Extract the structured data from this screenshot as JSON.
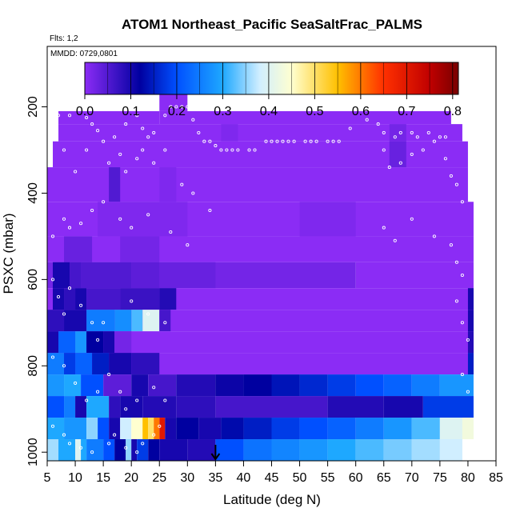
{
  "chart_data": {
    "type": "heatmap",
    "title": "ATOM1 Northeast_Pacific SeaSaltFrac_PALMS",
    "flights_label": "Flts: 1,2",
    "date_label": "MMDD: 0729,0801",
    "xlabel": "Latitude (deg N)",
    "ylabel": "PSXC (mbar)",
    "xlim": [
      5,
      85
    ],
    "ylim": [
      1020,
      60
    ],
    "y_reversed": true,
    "xticks": [
      5,
      10,
      15,
      20,
      25,
      30,
      35,
      40,
      45,
      50,
      55,
      60,
      65,
      70,
      75,
      80,
      85
    ],
    "yticks": [
      200,
      400,
      600,
      800,
      1000
    ],
    "colorbar": {
      "min": 0.0,
      "max": 0.8125,
      "ticks": [
        0.0,
        0.1,
        0.2,
        0.3,
        0.4,
        0.5,
        0.6,
        0.7,
        0.8
      ],
      "tick_labels": [
        "0.0",
        "0.1",
        "0.2",
        "0.3",
        "0.4",
        "0.5",
        "0.6",
        "0.7",
        "0.8"
      ],
      "colors": [
        "#8b2cf5",
        "#0000a0",
        "#0050ff",
        "#1ea8ff",
        "#d0eeff",
        "#ffffd0",
        "#ffc000",
        "#ff3000",
        "#c00000",
        "#780000"
      ],
      "stops": [
        0.0,
        0.12,
        0.2,
        0.3,
        0.38,
        0.45,
        0.55,
        0.65,
        0.75,
        0.8125
      ]
    },
    "marker_latitude": 35,
    "grid": [
      {
        "p": [
          170,
          210
        ],
        "segs": [
          [
            25,
            30,
            0.0
          ]
        ]
      },
      {
        "p": [
          210,
          240
        ],
        "segs": [
          [
            7,
            25,
            0.0
          ],
          [
            25,
            77,
            0.0
          ]
        ]
      },
      {
        "p": [
          240,
          280
        ],
        "segs": [
          [
            7,
            79,
            0.0
          ],
          [
            36,
            39,
            0.01
          ],
          [
            66,
            69,
            0.02
          ]
        ]
      },
      {
        "p": [
          280,
          340
        ],
        "segs": [
          [
            6,
            80,
            0.0
          ],
          [
            66,
            69,
            0.03
          ]
        ]
      },
      {
        "p": [
          340,
          420
        ],
        "segs": [
          [
            5,
            80,
            0.0
          ],
          [
            16,
            18,
            0.05
          ],
          [
            25,
            28,
            0.01
          ]
        ]
      },
      {
        "p": [
          420,
          500
        ],
        "segs": [
          [
            5,
            81,
            0.0
          ],
          [
            14,
            30,
            0.01
          ],
          [
            50,
            60,
            0.01
          ]
        ]
      },
      {
        "p": [
          500,
          560
        ],
        "segs": [
          [
            5,
            81,
            0.0
          ],
          [
            8,
            13,
            0.03
          ],
          [
            18,
            25,
            0.02
          ]
        ]
      },
      {
        "p": [
          560,
          620
        ],
        "segs": [
          [
            5,
            60,
            0.02
          ],
          [
            6,
            9,
            0.1
          ],
          [
            9,
            11,
            0.06
          ],
          [
            11,
            20,
            0.05
          ],
          [
            20,
            25,
            0.04
          ],
          [
            25,
            35,
            0.03
          ],
          [
            60,
            81,
            0.0
          ]
        ]
      },
      {
        "p": [
          620,
          670
        ],
        "segs": [
          [
            5,
            81,
            0.0
          ],
          [
            6,
            8,
            0.1
          ],
          [
            8,
            10,
            0.08
          ],
          [
            10,
            12,
            0.1
          ],
          [
            12,
            18,
            0.06
          ],
          [
            18,
            25,
            0.07
          ],
          [
            25,
            28,
            0.09
          ],
          [
            80,
            81,
            0.1
          ]
        ]
      },
      {
        "p": [
          670,
          720
        ],
        "segs": [
          [
            5,
            81,
            0.0
          ],
          [
            5,
            8,
            0.08
          ],
          [
            8,
            12,
            0.1
          ],
          [
            12,
            17,
            0.25
          ],
          [
            17,
            20,
            0.27
          ],
          [
            20,
            22,
            0.32
          ],
          [
            22,
            25,
            0.4
          ],
          [
            25,
            27,
            0.06
          ],
          [
            80,
            81,
            0.1
          ]
        ]
      },
      {
        "p": [
          720,
          770
        ],
        "segs": [
          [
            5,
            81,
            0.0
          ],
          [
            5,
            7,
            0.1
          ],
          [
            7,
            10,
            0.22
          ],
          [
            10,
            12,
            0.28
          ],
          [
            12,
            15,
            0.12
          ],
          [
            15,
            17,
            0.1
          ],
          [
            17,
            20,
            0.02
          ],
          [
            80,
            81,
            0.09
          ]
        ]
      },
      {
        "p": [
          770,
          820
        ],
        "segs": [
          [
            5,
            81,
            0.0
          ],
          [
            5,
            8,
            0.25
          ],
          [
            8,
            10,
            0.18
          ],
          [
            10,
            13,
            0.22
          ],
          [
            13,
            16,
            0.15
          ],
          [
            16,
            20,
            0.1
          ],
          [
            20,
            25,
            0.08
          ],
          [
            80,
            81,
            0.15
          ]
        ]
      },
      {
        "p": [
          820,
          870
        ],
        "segs": [
          [
            5,
            8,
            0.28
          ],
          [
            8,
            11,
            0.3
          ],
          [
            11,
            15,
            0.2
          ],
          [
            15,
            20,
            0.04
          ],
          [
            20,
            23,
            0.1
          ],
          [
            23,
            28,
            0.06
          ],
          [
            28,
            35,
            0.09
          ],
          [
            35,
            40,
            0.11
          ],
          [
            40,
            45,
            0.12
          ],
          [
            45,
            50,
            0.14
          ],
          [
            50,
            55,
            0.16
          ],
          [
            55,
            60,
            0.18
          ],
          [
            60,
            65,
            0.2
          ],
          [
            65,
            70,
            0.22
          ],
          [
            70,
            75,
            0.25
          ],
          [
            75,
            81,
            0.28
          ]
        ]
      },
      {
        "p": [
          870,
          920
        ],
        "segs": [
          [
            5,
            8,
            0.2
          ],
          [
            8,
            10,
            0.25
          ],
          [
            10,
            12,
            0.1
          ],
          [
            12,
            16,
            0.3
          ],
          [
            16,
            18,
            0.08
          ],
          [
            18,
            22,
            0.1
          ],
          [
            22,
            28,
            0.09
          ],
          [
            28,
            35,
            0.08
          ],
          [
            35,
            45,
            0.06
          ],
          [
            45,
            55,
            0.06
          ],
          [
            55,
            65,
            0.09
          ],
          [
            65,
            72,
            0.1
          ],
          [
            72,
            81,
            0.18
          ]
        ]
      },
      {
        "p": [
          920,
          970
        ],
        "segs": [
          [
            5,
            8,
            0.3
          ],
          [
            8,
            12,
            0.28
          ],
          [
            12,
            14,
            0.35
          ],
          [
            14,
            16,
            0.2
          ],
          [
            16,
            18,
            0.1
          ],
          [
            18,
            20,
            0.38
          ],
          [
            20,
            22,
            0.45
          ],
          [
            22,
            23,
            0.55
          ],
          [
            23,
            24,
            0.5
          ],
          [
            24,
            25,
            0.6
          ],
          [
            25,
            26,
            0.7
          ],
          [
            26,
            28,
            0.1
          ],
          [
            28,
            32,
            0.12
          ],
          [
            32,
            36,
            0.1
          ],
          [
            36,
            40,
            0.13
          ],
          [
            40,
            45,
            0.15
          ],
          [
            45,
            50,
            0.18
          ],
          [
            50,
            55,
            0.2
          ],
          [
            55,
            60,
            0.22
          ],
          [
            60,
            65,
            0.25
          ],
          [
            65,
            70,
            0.28
          ],
          [
            70,
            75,
            0.32
          ],
          [
            75,
            79,
            0.4
          ],
          [
            79,
            81,
            0.43
          ]
        ]
      },
      {
        "p": [
          970,
          1020
        ],
        "segs": [
          [
            5,
            7,
            0.36
          ],
          [
            7,
            10,
            0.3
          ],
          [
            10,
            11,
            0.4
          ],
          [
            11,
            12,
            0.3
          ],
          [
            12,
            15,
            0.25
          ],
          [
            15,
            17,
            0.2
          ],
          [
            17,
            19,
            0.12
          ],
          [
            19,
            20,
            0.35
          ],
          [
            20,
            21,
            0.1
          ],
          [
            21,
            23,
            0.18
          ],
          [
            23,
            25,
            0.12
          ],
          [
            25,
            30,
            0.1
          ],
          [
            30,
            35,
            0.09
          ],
          [
            35,
            40,
            0.2
          ],
          [
            40,
            45,
            0.24
          ],
          [
            45,
            50,
            0.26
          ],
          [
            50,
            55,
            0.28
          ],
          [
            55,
            60,
            0.3
          ],
          [
            60,
            65,
            0.32
          ],
          [
            65,
            70,
            0.34
          ],
          [
            70,
            75,
            0.36
          ],
          [
            75,
            79,
            0.38
          ]
        ]
      }
    ],
    "samples": [
      [
        7,
        220
      ],
      [
        9,
        220
      ],
      [
        12,
        225
      ],
      [
        13,
        240
      ],
      [
        14,
        255
      ],
      [
        15,
        280
      ],
      [
        17,
        270
      ],
      [
        19,
        240
      ],
      [
        21,
        220
      ],
      [
        22,
        250
      ],
      [
        23,
        270
      ],
      [
        24,
        260
      ],
      [
        26,
        220
      ],
      [
        27,
        200
      ],
      [
        28,
        200
      ],
      [
        29,
        200
      ],
      [
        30,
        200
      ],
      [
        31,
        230
      ],
      [
        32,
        260
      ],
      [
        33,
        280
      ],
      [
        34,
        280
      ],
      [
        35,
        290
      ],
      [
        36,
        300
      ],
      [
        37,
        300
      ],
      [
        38,
        300
      ],
      [
        39,
        300
      ],
      [
        41,
        300
      ],
      [
        42,
        300
      ],
      [
        44,
        280
      ],
      [
        45,
        280
      ],
      [
        46,
        280
      ],
      [
        47,
        280
      ],
      [
        48,
        280
      ],
      [
        49,
        280
      ],
      [
        51,
        280
      ],
      [
        52,
        280
      ],
      [
        53,
        280
      ],
      [
        55,
        280
      ],
      [
        56,
        280
      ],
      [
        57,
        280
      ],
      [
        59,
        250
      ],
      [
        62,
        230
      ],
      [
        64,
        240
      ],
      [
        65,
        260
      ],
      [
        67,
        270
      ],
      [
        68,
        260
      ],
      [
        70,
        260
      ],
      [
        71,
        270
      ],
      [
        73,
        260
      ],
      [
        75,
        270
      ],
      [
        76,
        270
      ],
      [
        8,
        300
      ],
      [
        10,
        350
      ],
      [
        12,
        300
      ],
      [
        16,
        330
      ],
      [
        18,
        310
      ],
      [
        19,
        350
      ],
      [
        21,
        320
      ],
      [
        22,
        300
      ],
      [
        24,
        330
      ],
      [
        26,
        300
      ],
      [
        29,
        380
      ],
      [
        31,
        400
      ],
      [
        34,
        440
      ],
      [
        65,
        300
      ],
      [
        66,
        340
      ],
      [
        68,
        330
      ],
      [
        70,
        310
      ],
      [
        72,
        300
      ],
      [
        74,
        280
      ],
      [
        76,
        320
      ],
      [
        77,
        360
      ],
      [
        78,
        380
      ],
      [
        79,
        420
      ],
      [
        6,
        500
      ],
      [
        8,
        460
      ],
      [
        9,
        480
      ],
      [
        11,
        470
      ],
      [
        13,
        440
      ],
      [
        15,
        420
      ],
      [
        18,
        460
      ],
      [
        20,
        480
      ],
      [
        23,
        450
      ],
      [
        27,
        490
      ],
      [
        30,
        520
      ],
      [
        65,
        480
      ],
      [
        67,
        510
      ],
      [
        70,
        460
      ],
      [
        74,
        500
      ],
      [
        77,
        520
      ],
      [
        78,
        560
      ],
      [
        79,
        590
      ],
      [
        6,
        600
      ],
      [
        7,
        640
      ],
      [
        8,
        680
      ],
      [
        9,
        620
      ],
      [
        11,
        660
      ],
      [
        13,
        700
      ],
      [
        14,
        740
      ],
      [
        15,
        700
      ],
      [
        20,
        650
      ],
      [
        23,
        680
      ],
      [
        26,
        700
      ],
      [
        78,
        650
      ],
      [
        79,
        700
      ],
      [
        80,
        740
      ],
      [
        6,
        780
      ],
      [
        8,
        800
      ],
      [
        10,
        840
      ],
      [
        12,
        880
      ],
      [
        14,
        860
      ],
      [
        16,
        820
      ],
      [
        18,
        860
      ],
      [
        19,
        900
      ],
      [
        21,
        880
      ],
      [
        24,
        850
      ],
      [
        26,
        880
      ],
      [
        79,
        820
      ],
      [
        80,
        860
      ],
      [
        6,
        940
      ],
      [
        8,
        960
      ],
      [
        9,
        980
      ],
      [
        11,
        990
      ],
      [
        13,
        1000
      ],
      [
        16,
        980
      ],
      [
        17,
        960
      ],
      [
        19,
        990
      ],
      [
        21,
        1000
      ],
      [
        22,
        980
      ],
      [
        24,
        960
      ],
      [
        25,
        940
      ]
    ]
  }
}
